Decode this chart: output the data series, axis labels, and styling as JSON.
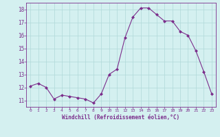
{
  "x": [
    0,
    1,
    2,
    3,
    4,
    5,
    6,
    7,
    8,
    9,
    10,
    11,
    12,
    13,
    14,
    15,
    16,
    17,
    18,
    19,
    20,
    21,
    22,
    23
  ],
  "y": [
    12.1,
    12.3,
    12.0,
    11.1,
    11.4,
    11.3,
    11.2,
    11.1,
    10.8,
    11.5,
    13.0,
    13.4,
    15.8,
    17.4,
    18.1,
    18.1,
    17.6,
    17.1,
    17.1,
    16.3,
    16.0,
    14.8,
    13.2,
    11.5
  ],
  "line_color": "#7b2d8b",
  "marker": "D",
  "marker_size": 2.0,
  "bg_color": "#d4f0f0",
  "grid_color": "#b0d8d8",
  "xlabel": "Windchill (Refroidissement éolien,°C)",
  "xlabel_color": "#7b2d8b",
  "ylabel_ticks": [
    11,
    12,
    13,
    14,
    15,
    16,
    17,
    18
  ],
  "xlim": [
    -0.5,
    23.5
  ],
  "ylim": [
    10.5,
    18.5
  ],
  "tick_color": "#7b2d8b",
  "axis_color": "#7b2d8b"
}
